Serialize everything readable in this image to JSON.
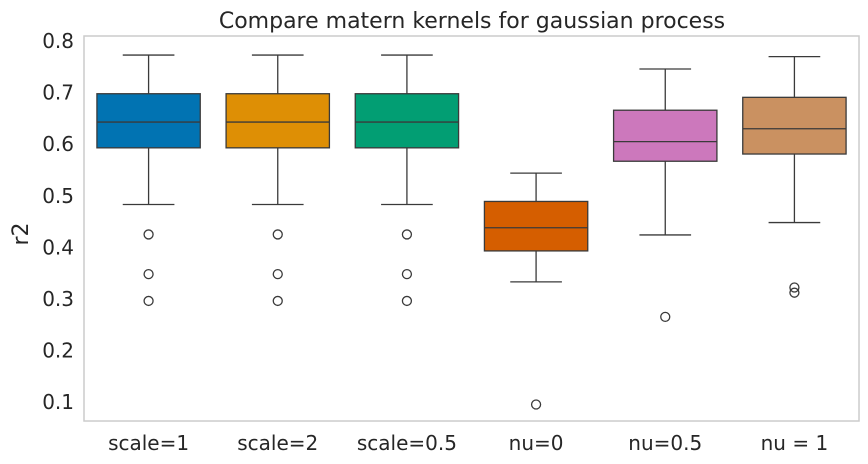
{
  "chart_data": {
    "type": "box",
    "title": "Compare matern kernels for gaussian process",
    "xlabel": "",
    "ylabel": "r2",
    "ylim": [
      0.063,
      0.81
    ],
    "yticks": [
      "0.1",
      "0.2",
      "0.3",
      "0.4",
      "0.5",
      "0.6",
      "0.7",
      "0.8"
    ],
    "grid": false,
    "categories": [
      "scale=1",
      "scale=2",
      "scale=0.5",
      "nu=0",
      "nu=0.5",
      "nu = 1"
    ],
    "colors": [
      "#0173b2",
      "#de8f05",
      "#029e73",
      "#d55e00",
      "#cc78bc",
      "#ca9161"
    ],
    "boxes": [
      {
        "whisker_low": 0.483,
        "q1": 0.593,
        "median": 0.643,
        "q3": 0.698,
        "whisker_high": 0.773,
        "outliers": [
          0.425,
          0.348,
          0.296
        ]
      },
      {
        "whisker_low": 0.483,
        "q1": 0.593,
        "median": 0.643,
        "q3": 0.698,
        "whisker_high": 0.773,
        "outliers": [
          0.425,
          0.348,
          0.296
        ]
      },
      {
        "whisker_low": 0.483,
        "q1": 0.593,
        "median": 0.643,
        "q3": 0.698,
        "whisker_high": 0.773,
        "outliers": [
          0.425,
          0.348,
          0.296
        ]
      },
      {
        "whisker_low": 0.333,
        "q1": 0.393,
        "median": 0.438,
        "q3": 0.489,
        "whisker_high": 0.544,
        "outliers": [
          0.095
        ]
      },
      {
        "whisker_low": 0.424,
        "q1": 0.567,
        "median": 0.605,
        "q3": 0.666,
        "whisker_high": 0.746,
        "outliers": [
          0.265
        ]
      },
      {
        "whisker_low": 0.448,
        "q1": 0.581,
        "median": 0.63,
        "q3": 0.691,
        "whisker_high": 0.77,
        "outliers": [
          0.322,
          0.312
        ]
      }
    ]
  }
}
